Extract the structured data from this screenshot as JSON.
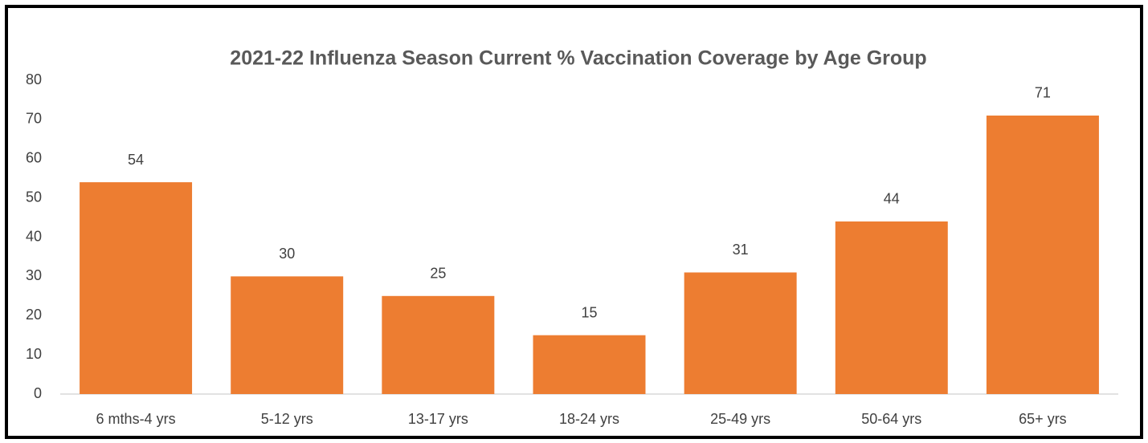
{
  "chart_data": {
    "type": "bar",
    "title": "2021-22 Influenza Season Current % Vaccination Coverage by Age Group",
    "categories": [
      "6 mths-4 yrs",
      "5-12 yrs",
      "13-17 yrs",
      "18-24 yrs",
      "25-49 yrs",
      "50-64 yrs",
      "65+ yrs"
    ],
    "values": [
      54,
      30,
      25,
      15,
      31,
      44,
      71
    ],
    "color": "#ed7d31",
    "ylim": [
      0,
      80
    ],
    "yticks": [
      0,
      10,
      20,
      30,
      40,
      50,
      60,
      70,
      80
    ],
    "grid": false
  }
}
